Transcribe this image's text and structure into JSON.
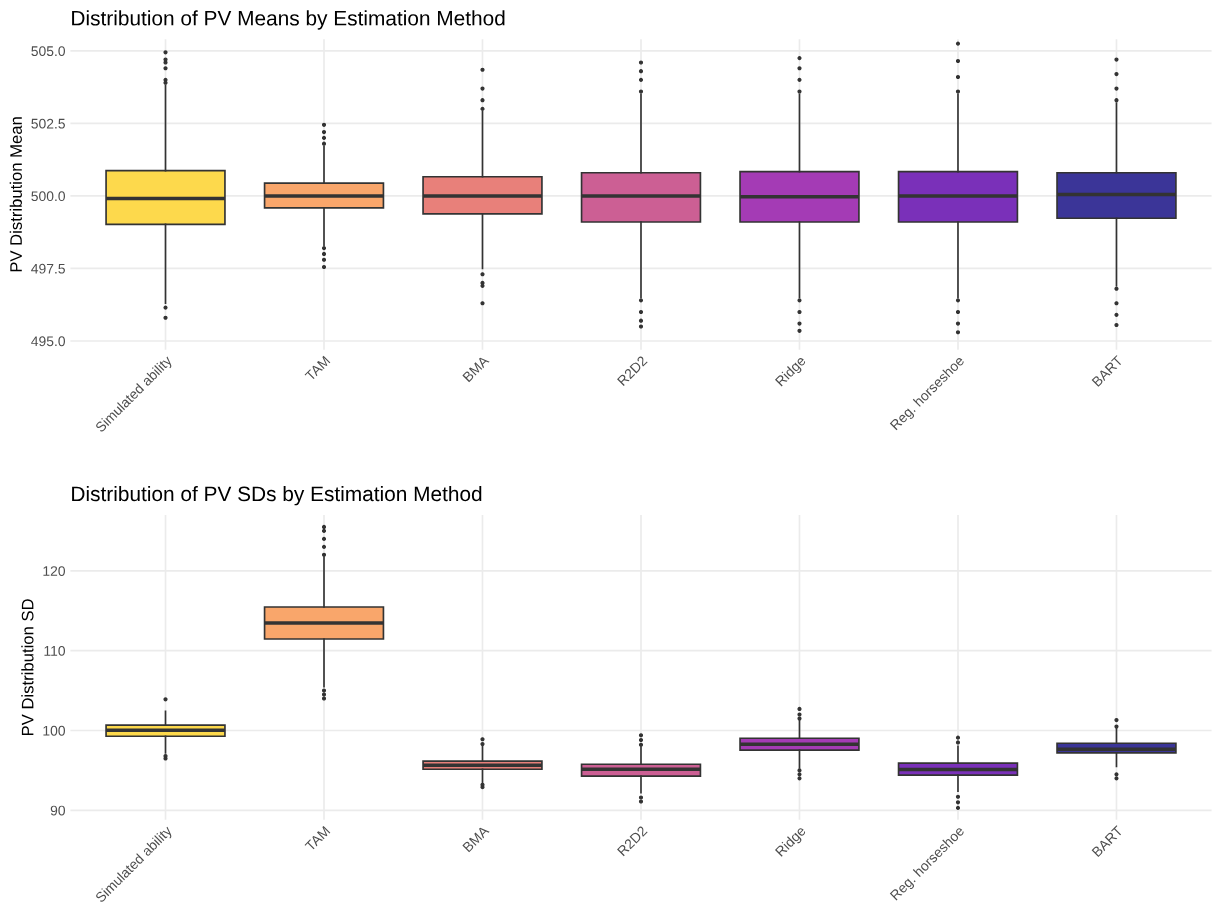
{
  "chart_data": [
    {
      "type": "box",
      "title": "Distribution of PV Means by Estimation Method",
      "ylabel": "PV Distribution Mean",
      "categories": [
        "Simulated ability",
        "TAM",
        "BMA",
        "R2D2",
        "Ridge",
        "Reg. horseshoe",
        "BART"
      ],
      "colors": [
        "#fdd94c",
        "#f9a66b",
        "#e8807a",
        "#cc5f94",
        "#a43bb5",
        "#7a30b9",
        "#3b3598"
      ],
      "ylim": [
        494.7,
        505.4
      ],
      "yticks": [
        {
          "value": 495,
          "label": "495.0"
        },
        {
          "value": 497.5,
          "label": "497.5"
        },
        {
          "value": 500,
          "label": "500.0"
        },
        {
          "value": 502.5,
          "label": "502.5"
        },
        {
          "value": 505,
          "label": "505.0"
        }
      ],
      "grid": true,
      "boxes": [
        {
          "low": 496.3,
          "q1": 499.02,
          "median": 499.91,
          "q3": 500.87,
          "high": 503.8,
          "outliers": [
            495.8,
            496.15,
            503.9,
            504.0,
            504.4,
            504.6,
            504.7,
            504.95
          ]
        },
        {
          "low": 498.3,
          "q1": 499.59,
          "median": 500.0,
          "q3": 500.44,
          "high": 501.7,
          "outliers": [
            497.55,
            497.8,
            498.0,
            498.2,
            501.8,
            502.0,
            502.2,
            502.45
          ]
        },
        {
          "low": 497.5,
          "q1": 499.38,
          "median": 500.0,
          "q3": 500.66,
          "high": 502.9,
          "outliers": [
            496.3,
            496.9,
            497.0,
            497.3,
            503.0,
            503.3,
            503.7,
            504.35
          ]
        },
        {
          "low": 496.5,
          "q1": 499.1,
          "median": 500.0,
          "q3": 500.8,
          "high": 503.5,
          "outliers": [
            495.5,
            495.7,
            496.0,
            496.4,
            503.6,
            504.0,
            504.3,
            504.6
          ]
        },
        {
          "low": 496.5,
          "q1": 499.1,
          "median": 499.97,
          "q3": 500.84,
          "high": 503.5,
          "outliers": [
            495.35,
            495.6,
            496.0,
            496.4,
            503.6,
            504.0,
            504.4,
            504.75
          ]
        },
        {
          "low": 496.5,
          "q1": 499.1,
          "median": 500.0,
          "q3": 500.84,
          "high": 503.5,
          "outliers": [
            495.3,
            495.6,
            496.0,
            496.4,
            503.6,
            504.1,
            504.65,
            505.25
          ]
        },
        {
          "low": 496.9,
          "q1": 499.23,
          "median": 500.05,
          "q3": 500.8,
          "high": 503.2,
          "outliers": [
            495.55,
            495.9,
            496.3,
            496.8,
            503.3,
            503.7,
            504.2,
            504.7
          ]
        }
      ]
    },
    {
      "type": "box",
      "title": "Distribution of PV SDs by Estimation Method",
      "ylabel": "PV Distribution SD",
      "categories": [
        "Simulated ability",
        "TAM",
        "BMA",
        "R2D2",
        "Ridge",
        "Reg. horseshoe",
        "BART"
      ],
      "colors": [
        "#fdd94c",
        "#f9a66b",
        "#e8807a",
        "#cc5f94",
        "#a43bb5",
        "#7a30b9",
        "#3b3598"
      ],
      "ylim": [
        88.8,
        127.0
      ],
      "yticks": [
        90,
        100,
        110,
        120
      ],
      "grid": true,
      "boxes": [
        {
          "low": 97.2,
          "q1": 99.28,
          "median": 100.04,
          "q3": 100.66,
          "high": 102.4,
          "outliers": [
            96.5,
            96.8,
            103.9
          ]
        },
        {
          "low": 105.5,
          "q1": 111.46,
          "median": 113.46,
          "q3": 115.47,
          "high": 121.7,
          "outliers": [
            104.0,
            104.5,
            105.0,
            122.0,
            123.0,
            124.0,
            125.0,
            125.5
          ]
        },
        {
          "low": 93.4,
          "q1": 95.14,
          "median": 95.65,
          "q3": 96.15,
          "high": 98.0,
          "outliers": [
            92.9,
            93.2,
            98.3,
            98.9
          ]
        },
        {
          "low": 92.2,
          "q1": 94.27,
          "median": 95.14,
          "q3": 95.77,
          "high": 97.9,
          "outliers": [
            91.1,
            91.6,
            98.2,
            98.8,
            99.4
          ]
        },
        {
          "low": 95.3,
          "q1": 97.53,
          "median": 98.28,
          "q3": 99.03,
          "high": 101.2,
          "outliers": [
            94.0,
            94.5,
            95.0,
            101.5,
            102.0,
            102.7
          ]
        },
        {
          "low": 92.4,
          "q1": 94.4,
          "median": 95.1,
          "q3": 95.9,
          "high": 98.0,
          "outliers": [
            90.3,
            91.0,
            91.7,
            98.5,
            99.1
          ]
        },
        {
          "low": 95.5,
          "q1": 97.2,
          "median": 97.65,
          "q3": 98.4,
          "high": 100.2,
          "outliers": [
            94.0,
            94.5,
            100.5,
            101.3
          ]
        }
      ]
    }
  ]
}
